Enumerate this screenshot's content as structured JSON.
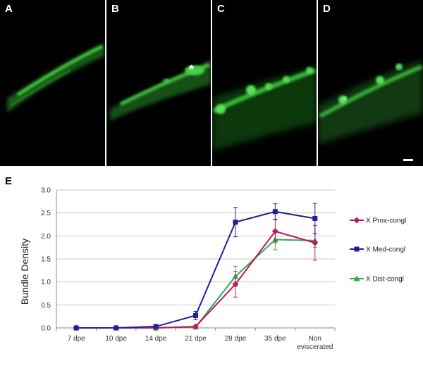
{
  "panels": [
    {
      "label": "A"
    },
    {
      "label": "B",
      "annotation": "*"
    },
    {
      "label": "C"
    },
    {
      "label": "D"
    }
  ],
  "chart_label": "E",
  "chart_data": {
    "type": "line",
    "title": "",
    "xlabel": "",
    "ylabel": "Bundle Density",
    "categories": [
      "7 dpe",
      "10 dpe",
      "14 dpe",
      "21 dpe",
      "28 dpe",
      "35 dpe",
      "Non eviscerated"
    ],
    "category_lines": [
      [
        "7 dpe"
      ],
      [
        "10 dpe"
      ],
      [
        "14 dpe"
      ],
      [
        "21 dpe"
      ],
      [
        "28 dpe"
      ],
      [
        "35 dpe"
      ],
      [
        "Non",
        "eviscerated"
      ]
    ],
    "ylim": [
      0,
      3.0
    ],
    "yticks": [
      "0.0",
      "0.5",
      "1.0",
      "1.5",
      "2.0",
      "2.5",
      "3.0"
    ],
    "grid": true,
    "legend_position": "right",
    "series": [
      {
        "name": "X Prox-congl",
        "color": "#c0185b",
        "marker": "diamond",
        "values": [
          0,
          0,
          0,
          0.03,
          0.95,
          2.1,
          1.85
        ],
        "errors": [
          0,
          0,
          0,
          0.02,
          0.28,
          0.25,
          0.38
        ]
      },
      {
        "name": "X Med-congl",
        "color": "#1f1f99",
        "marker": "square",
        "values": [
          0,
          0,
          0.03,
          0.27,
          2.3,
          2.53,
          2.38
        ],
        "errors": [
          0,
          0,
          0.02,
          0.09,
          0.32,
          0.17,
          0.33
        ]
      },
      {
        "name": "X Dist-congl",
        "color": "#2eaa4f",
        "marker": "triangle",
        "values": [
          0,
          0,
          0,
          0.02,
          1.12,
          1.92,
          1.9
        ],
        "errors": [
          0,
          0,
          0,
          0.02,
          0.22,
          0.22,
          0.15
        ]
      }
    ]
  }
}
